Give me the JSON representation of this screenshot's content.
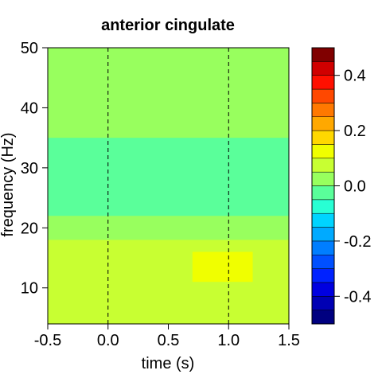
{
  "chart_data": {
    "type": "heatmap",
    "title": "anterior cingulate",
    "xlabel": "time (s)",
    "ylabel": "frequency (Hz)",
    "xlim": [
      -0.5,
      1.5
    ],
    "ylim": [
      4,
      50
    ],
    "x_ticks": [
      "-0.5",
      "0.0",
      "0.5",
      "1.0",
      "1.5"
    ],
    "y_ticks": [
      "10",
      "20",
      "30",
      "40",
      "50"
    ],
    "event_lines_x": [
      0.0,
      1.0
    ],
    "colorbar": {
      "range": [
        -0.5,
        0.5
      ],
      "ticks": [
        "0.4",
        "0.2",
        "0.0",
        "-0.2",
        "-0.4"
      ],
      "colors": [
        "#000080",
        "#0000B4",
        "#0000E0",
        "#0022FF",
        "#0050FF",
        "#007EFF",
        "#00AAFF",
        "#00D4FF",
        "#28FFD4",
        "#5AFF9A",
        "#98FF5E",
        "#C8FF32",
        "#F0FF00",
        "#FFD800",
        "#FFA800",
        "#FF7800",
        "#FF4800",
        "#FF1000",
        "#D00000",
        "#800000"
      ]
    },
    "regions": [
      {
        "f_range": [
          35,
          50
        ],
        "t_range": [
          -0.5,
          1.5
        ],
        "value": 0.03
      },
      {
        "f_range": [
          22,
          35
        ],
        "t_range": [
          -0.5,
          1.5
        ],
        "value": -0.02
      },
      {
        "f_range": [
          4,
          18
        ],
        "t_range": [
          -0.5,
          1.5
        ],
        "value": 0.06
      },
      {
        "f_range": [
          11,
          16
        ],
        "t_range": [
          0.7,
          1.2
        ],
        "value": 0.12
      }
    ]
  }
}
